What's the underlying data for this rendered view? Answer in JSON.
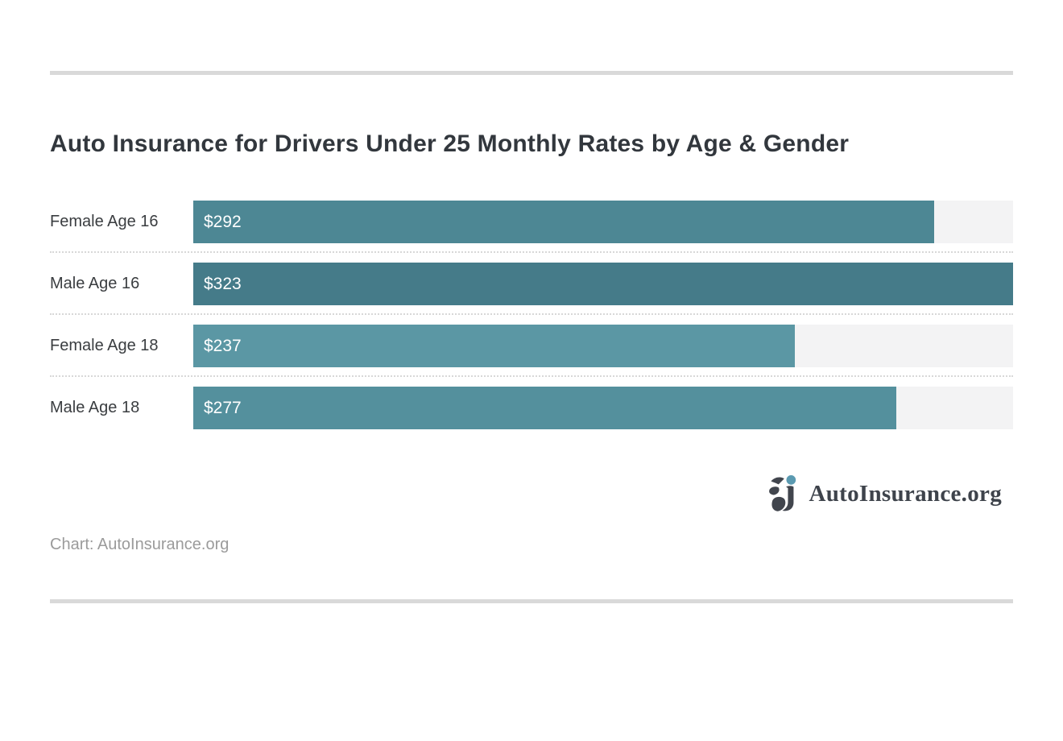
{
  "chart_data": {
    "type": "bar",
    "orientation": "horizontal",
    "title": "Auto Insurance for Drivers Under 25 Monthly Rates by Age & Gender",
    "categories": [
      "Female Age 16",
      "Male Age 16",
      "Female Age 18",
      "Male Age 18"
    ],
    "values": [
      292,
      323,
      237,
      277
    ],
    "value_labels": [
      "$292",
      "$323",
      "$237",
      "$277"
    ],
    "bar_colors": [
      "#4d8794",
      "#457b89",
      "#5b97a4",
      "#54909d"
    ],
    "track_color": "#f3f3f4",
    "xlim": [
      0,
      323
    ],
    "grid": "off",
    "legend": "none",
    "xlabel": "",
    "ylabel": ""
  },
  "colors": {
    "divider": "#d9d9d9",
    "title_text": "#32373d",
    "category_text": "#3a3d40",
    "bar_value_text": "#ffffff",
    "attribution_text": "#9b9b9b",
    "logo_text": "#3e434b",
    "logo_dot": "#5b9ab1",
    "logo_mark": "#41454d",
    "row_separator": "#d8d8d8"
  },
  "footer": {
    "attribution": "Chart: AutoInsurance.org",
    "logo_text": "AutoInsurance.org"
  }
}
